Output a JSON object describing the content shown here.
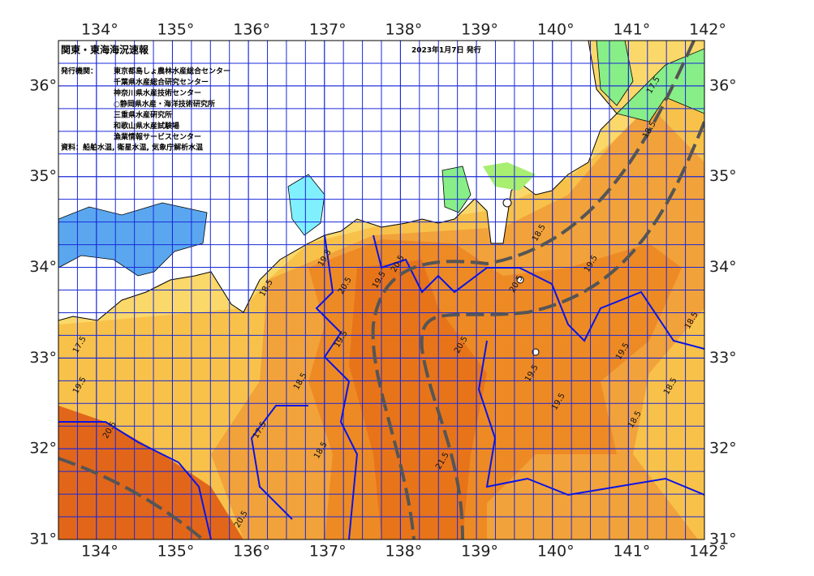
{
  "header": {
    "title": "関東・東海海況速報",
    "date": "2023年1月7日 発行"
  },
  "issuers": {
    "label": "発行機関：",
    "items": [
      "東京都島しょ農林水産総合センター",
      "千葉県水産総合研究センター",
      "神奈川県水産技術センター",
      "○静岡県水産・海洋技術研究所",
      "三重県水産研究所",
      "和歌山県水産試験場",
      "漁業情報サービスセンター"
    ]
  },
  "source": "資料：船舶水温, 衛星水温, 気象庁解析水温",
  "map": {
    "xlim": [
      133.5,
      142
    ],
    "ylim": [
      31,
      36.5
    ],
    "xticks": [
      {
        "value": 134,
        "label": "134°"
      },
      {
        "value": 135,
        "label": "135°"
      },
      {
        "value": 136,
        "label": "136°"
      },
      {
        "value": 137,
        "label": "137°"
      },
      {
        "value": 138,
        "label": "138°"
      },
      {
        "value": 139,
        "label": "139°"
      },
      {
        "value": 140,
        "label": "140°"
      },
      {
        "value": 141,
        "label": "141°"
      },
      {
        "value": 142,
        "label": "142°"
      }
    ],
    "yticks": [
      {
        "value": 31,
        "label": "31°"
      },
      {
        "value": 32,
        "label": "32°"
      },
      {
        "value": 33,
        "label": "33°"
      },
      {
        "value": 34,
        "label": "34°"
      },
      {
        "value": 35,
        "label": "35°"
      },
      {
        "value": 36,
        "label": "36°"
      }
    ],
    "contour_labels": [
      17.5,
      19.5,
      20.5,
      18.5,
      19.5,
      20.5,
      19.5,
      18.5,
      17.5,
      18.5,
      20.5,
      19.5,
      20.5,
      19.5,
      19.5,
      18.5,
      19.5,
      18.5,
      17.5,
      18.5,
      18.5,
      19.5,
      18.5,
      20.5,
      21.5,
      20.5
    ]
  }
}
